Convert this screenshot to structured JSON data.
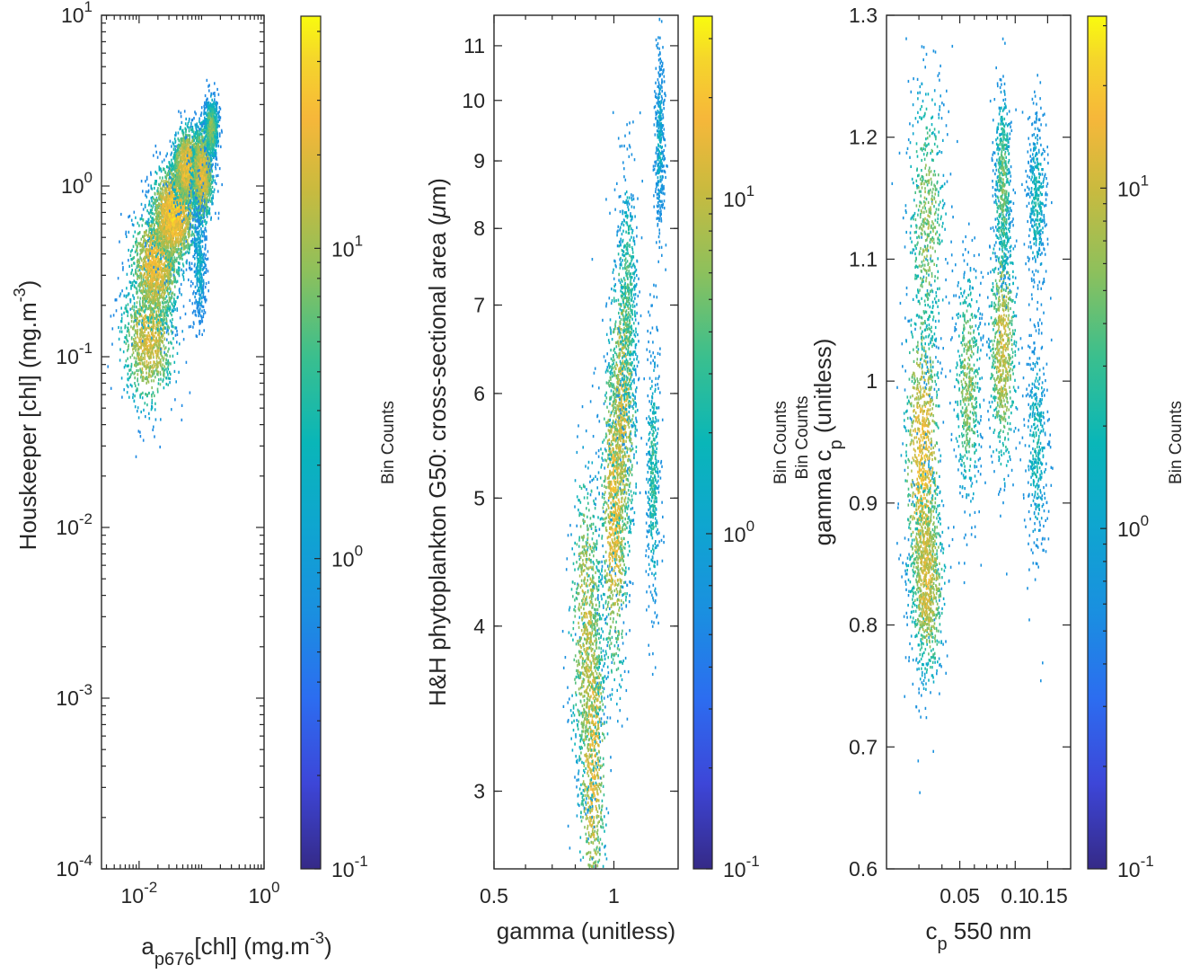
{
  "chart_data": [
    {
      "type": "heatmap",
      "id": "panel1",
      "title": "",
      "xlabel": "a_p676[chl] (mg.m^-3)",
      "xlabel_parts": {
        "main": "a",
        "sub": "p676",
        "rest": "[chl] (mg.m",
        "sup": "-3",
        "end": ")"
      },
      "ylabel": "Houskeeper [chl] (mg.m^-3)",
      "ylabel_parts": {
        "main": "Houskeeper [chl] (mg.m",
        "sup": "-3",
        "end": ")"
      },
      "xscale": "log",
      "yscale": "log",
      "xlim": [
        0.0025,
        1.0
      ],
      "ylim": [
        0.0001,
        10
      ],
      "xticks": [
        {
          "value": 0.01,
          "base": "10",
          "exp": "-2"
        },
        {
          "value": 1,
          "base": "10",
          "exp": "0"
        }
      ],
      "yticks": [
        {
          "value": 0.0001,
          "base": "10",
          "exp": "-4"
        },
        {
          "value": 0.001,
          "base": "10",
          "exp": "-3"
        },
        {
          "value": 0.01,
          "base": "10",
          "exp": "-2"
        },
        {
          "value": 0.1,
          "base": "10",
          "exp": "-1"
        },
        {
          "value": 1,
          "base": "10",
          "exp": "0"
        },
        {
          "value": 10,
          "base": "10",
          "exp": "1"
        }
      ],
      "colorbar": {
        "label": "Bin Counts",
        "scale": "log",
        "range": [
          0.1,
          56
        ],
        "ticks": [
          {
            "value": 0.1,
            "base": "10",
            "exp": "-1"
          },
          {
            "value": 1,
            "base": "10",
            "exp": "0"
          },
          {
            "value": 10,
            "base": "10",
            "exp": "1"
          }
        ]
      },
      "density_clusters": [
        {
          "x": 0.014,
          "y": 0.13,
          "spread_x": 0.18,
          "spread_y": 0.22,
          "peak": 18
        },
        {
          "x": 0.018,
          "y": 0.35,
          "spread_x": 0.16,
          "spread_y": 0.18,
          "peak": 25
        },
        {
          "x": 0.035,
          "y": 0.7,
          "spread_x": 0.14,
          "spread_y": 0.15,
          "peak": 35
        },
        {
          "x": 0.06,
          "y": 1.3,
          "spread_x": 0.1,
          "spread_y": 0.12,
          "peak": 28
        },
        {
          "x": 0.1,
          "y": 1.2,
          "spread_x": 0.07,
          "spread_y": 0.15,
          "peak": 22
        },
        {
          "x": 0.14,
          "y": 2.2,
          "spread_x": 0.05,
          "spread_y": 0.1,
          "peak": 8
        },
        {
          "x": 0.09,
          "y": 0.35,
          "spread_x": 0.05,
          "spread_y": 0.2,
          "peak": 2
        }
      ]
    },
    {
      "type": "heatmap",
      "id": "panel2",
      "title": "",
      "xlabel": "gamma (unitless)",
      "ylabel": "H&H phytoplankton G50: cross-sectional area (μm)",
      "ylabel_parts": {
        "main": "H&H phytoplankton G50: cross-sectional area (",
        "mu": "μ",
        "end": "m)"
      },
      "xscale": "log",
      "yscale": "log",
      "xlim": [
        0.5,
        1.45
      ],
      "ylim": [
        2.62,
        11.6
      ],
      "xticks": [
        {
          "value": 0.5,
          "label": "0.5"
        },
        {
          "value": 1,
          "label": "1"
        }
      ],
      "yticks": [
        {
          "value": 3,
          "label": "3"
        },
        {
          "value": 4,
          "label": "4"
        },
        {
          "value": 5,
          "label": "5"
        },
        {
          "value": 6,
          "label": "6"
        },
        {
          "value": 7,
          "label": "7"
        },
        {
          "value": 8,
          "label": "8"
        },
        {
          "value": 9,
          "label": "9"
        },
        {
          "value": 10,
          "label": "10"
        },
        {
          "value": 11,
          "label": "11"
        }
      ],
      "colorbar": {
        "label": "Bin Counts",
        "scale": "log",
        "range": [
          0.1,
          35
        ],
        "ticks": [
          {
            "value": 0.1,
            "base": "10",
            "exp": "-1"
          },
          {
            "value": 1,
            "base": "10",
            "exp": "0"
          },
          {
            "value": 10,
            "base": "10",
            "exp": "1"
          }
        ]
      },
      "density_clusters": [
        {
          "x": 0.88,
          "y": 3.25,
          "spread_x": 0.08,
          "spread_y": 0.08,
          "peak": 14
        },
        {
          "x": 0.85,
          "y": 4.0,
          "spread_x": 0.1,
          "spread_y": 0.07,
          "peak": 10
        },
        {
          "x": 1.0,
          "y": 4.9,
          "spread_x": 0.08,
          "spread_y": 0.07,
          "peak": 16
        },
        {
          "x": 1.05,
          "y": 5.9,
          "spread_x": 0.08,
          "spread_y": 0.07,
          "peak": 12
        },
        {
          "x": 1.08,
          "y": 7.0,
          "spread_x": 0.06,
          "spread_y": 0.06,
          "peak": 4
        },
        {
          "x": 1.25,
          "y": 5.2,
          "spread_x": 0.04,
          "spread_y": 0.06,
          "peak": 3
        },
        {
          "x": 1.3,
          "y": 9.3,
          "spread_x": 0.03,
          "spread_y": 0.04,
          "peak": 1.5
        }
      ]
    },
    {
      "type": "heatmap",
      "id": "panel3",
      "title": "",
      "xlabel": "c_p 550 nm",
      "xlabel_parts": {
        "main": "c",
        "sub": "p",
        "rest": " 550 nm"
      },
      "ylabel": "gamma c_p (unitless)",
      "ylabel_parts": {
        "main": "gamma c",
        "sub": "p",
        "rest": " (unitless)"
      },
      "overlapping_label": "Bin Counts",
      "xscale": "log",
      "yscale": "linear",
      "xlim": [
        0.02,
        0.2
      ],
      "ylim": [
        0.6,
        1.3
      ],
      "xticks": [
        {
          "value": 0.05,
          "label": "0.05"
        },
        {
          "value": 0.1,
          "label": "0.1"
        },
        {
          "value": 0.15,
          "label": "0.15"
        }
      ],
      "yticks": [
        {
          "value": 0.6,
          "label": "0.6"
        },
        {
          "value": 0.7,
          "label": "0.7"
        },
        {
          "value": 0.8,
          "label": "0.8"
        },
        {
          "value": 0.9,
          "label": "0.9"
        },
        {
          "value": 1.0,
          "label": "1"
        },
        {
          "value": 1.1,
          "label": "1.1"
        },
        {
          "value": 1.2,
          "label": "1.2"
        },
        {
          "value": 1.3,
          "label": "1.3"
        }
      ],
      "colorbar": {
        "label": "Bin Counts",
        "scale": "log",
        "range": [
          0.1,
          32
        ],
        "ticks": [
          {
            "value": 0.1,
            "base": "10",
            "exp": "-1"
          },
          {
            "value": 1,
            "base": "10",
            "exp": "0"
          },
          {
            "value": 10,
            "base": "10",
            "exp": "1"
          }
        ]
      },
      "density_clusters": [
        {
          "x": 0.031,
          "y": 0.93,
          "spread_x": 0.1,
          "spread_y": 0.07,
          "peak": 16
        },
        {
          "x": 0.033,
          "y": 0.84,
          "spread_x": 0.1,
          "spread_y": 0.04,
          "peak": 12
        },
        {
          "x": 0.033,
          "y": 1.13,
          "spread_x": 0.12,
          "spread_y": 0.06,
          "peak": 6
        },
        {
          "x": 0.055,
          "y": 1.0,
          "spread_x": 0.08,
          "spread_y": 0.05,
          "peak": 6
        },
        {
          "x": 0.085,
          "y": 1.03,
          "spread_x": 0.08,
          "spread_y": 0.05,
          "peak": 10
        },
        {
          "x": 0.085,
          "y": 1.16,
          "spread_x": 0.05,
          "spread_y": 0.04,
          "peak": 5
        },
        {
          "x": 0.13,
          "y": 1.15,
          "spread_x": 0.06,
          "spread_y": 0.04,
          "peak": 2
        },
        {
          "x": 0.13,
          "y": 0.95,
          "spread_x": 0.07,
          "spread_y": 0.05,
          "peak": 2
        }
      ]
    }
  ]
}
